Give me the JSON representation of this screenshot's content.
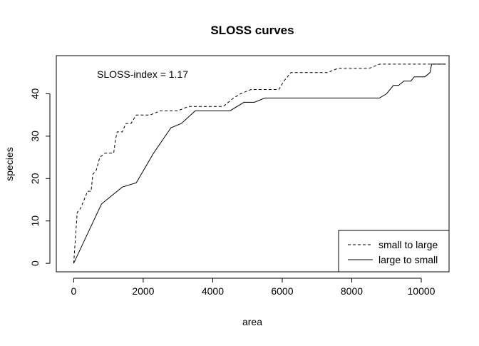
{
  "chart_data": {
    "type": "line",
    "title": "SLOSS curves",
    "xlabel": "area",
    "ylabel": "species",
    "xlim": [
      -500,
      10800
    ],
    "ylim": [
      -2.0,
      49.0
    ],
    "x_ticks": [
      0,
      2000,
      4000,
      6000,
      8000,
      10000
    ],
    "y_ticks": [
      0,
      10,
      20,
      30,
      40
    ],
    "grid": false,
    "legend_position": "bottom-right",
    "annotation": "SLOSS-index = 1.17",
    "series": [
      {
        "name": "small to large",
        "line_style": "dashed",
        "color": "#000000",
        "points": [
          [
            0,
            0
          ],
          [
            100,
            12
          ],
          [
            200,
            13
          ],
          [
            300,
            15
          ],
          [
            400,
            17
          ],
          [
            500,
            17
          ],
          [
            550,
            21
          ],
          [
            650,
            22
          ],
          [
            750,
            25
          ],
          [
            900,
            26
          ],
          [
            1150,
            26
          ],
          [
            1200,
            29
          ],
          [
            1250,
            31
          ],
          [
            1400,
            31
          ],
          [
            1500,
            33
          ],
          [
            1650,
            33
          ],
          [
            1800,
            35
          ],
          [
            2200,
            35
          ],
          [
            2500,
            36
          ],
          [
            3000,
            36
          ],
          [
            3300,
            37
          ],
          [
            4300,
            37
          ],
          [
            4600,
            39
          ],
          [
            4800,
            40
          ],
          [
            5100,
            41
          ],
          [
            5900,
            41
          ],
          [
            6050,
            43
          ],
          [
            6250,
            45
          ],
          [
            7300,
            45
          ],
          [
            7600,
            46
          ],
          [
            8500,
            46
          ],
          [
            8800,
            47
          ],
          [
            10500,
            47
          ],
          [
            10700,
            47
          ]
        ]
      },
      {
        "name": "large to small",
        "line_style": "solid",
        "color": "#000000",
        "points": [
          [
            0,
            0
          ],
          [
            800,
            14
          ],
          [
            1400,
            18
          ],
          [
            1800,
            19
          ],
          [
            2300,
            26
          ],
          [
            2800,
            32
          ],
          [
            3100,
            33
          ],
          [
            3500,
            36
          ],
          [
            4500,
            36
          ],
          [
            4900,
            38
          ],
          [
            5200,
            38
          ],
          [
            5500,
            39
          ],
          [
            8800,
            39
          ],
          [
            9000,
            40
          ],
          [
            9200,
            42
          ],
          [
            9350,
            42
          ],
          [
            9500,
            43
          ],
          [
            9700,
            43
          ],
          [
            9800,
            44
          ],
          [
            10100,
            44
          ],
          [
            10250,
            45
          ],
          [
            10300,
            47
          ],
          [
            10700,
            47
          ]
        ]
      }
    ]
  }
}
